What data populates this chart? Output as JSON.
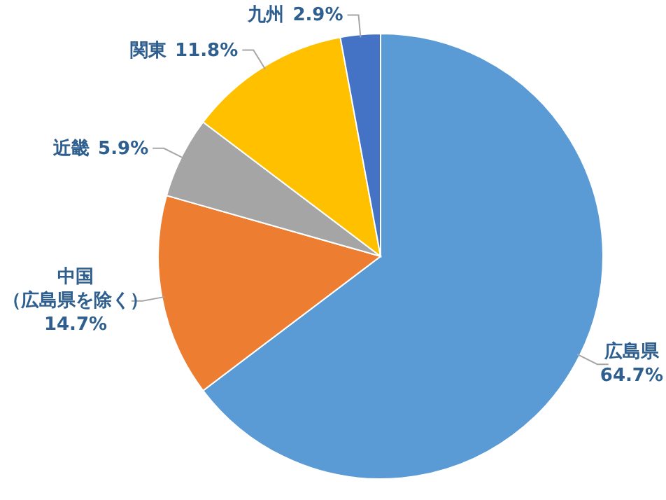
{
  "chart_data": {
    "type": "pie",
    "categories": [
      "広島県",
      "中国（広島県を除く）",
      "近畿",
      "関東",
      "九州"
    ],
    "values": [
      64.7,
      14.7,
      5.9,
      11.8,
      2.9
    ],
    "value_labels": [
      "64.7%",
      "14.7%",
      "5.9%",
      "11.8%",
      "2.9%"
    ],
    "colors": [
      "#5b9bd5",
      "#ed7d31",
      "#a5a5a5",
      "#ffc000",
      "#4472c4"
    ]
  }
}
